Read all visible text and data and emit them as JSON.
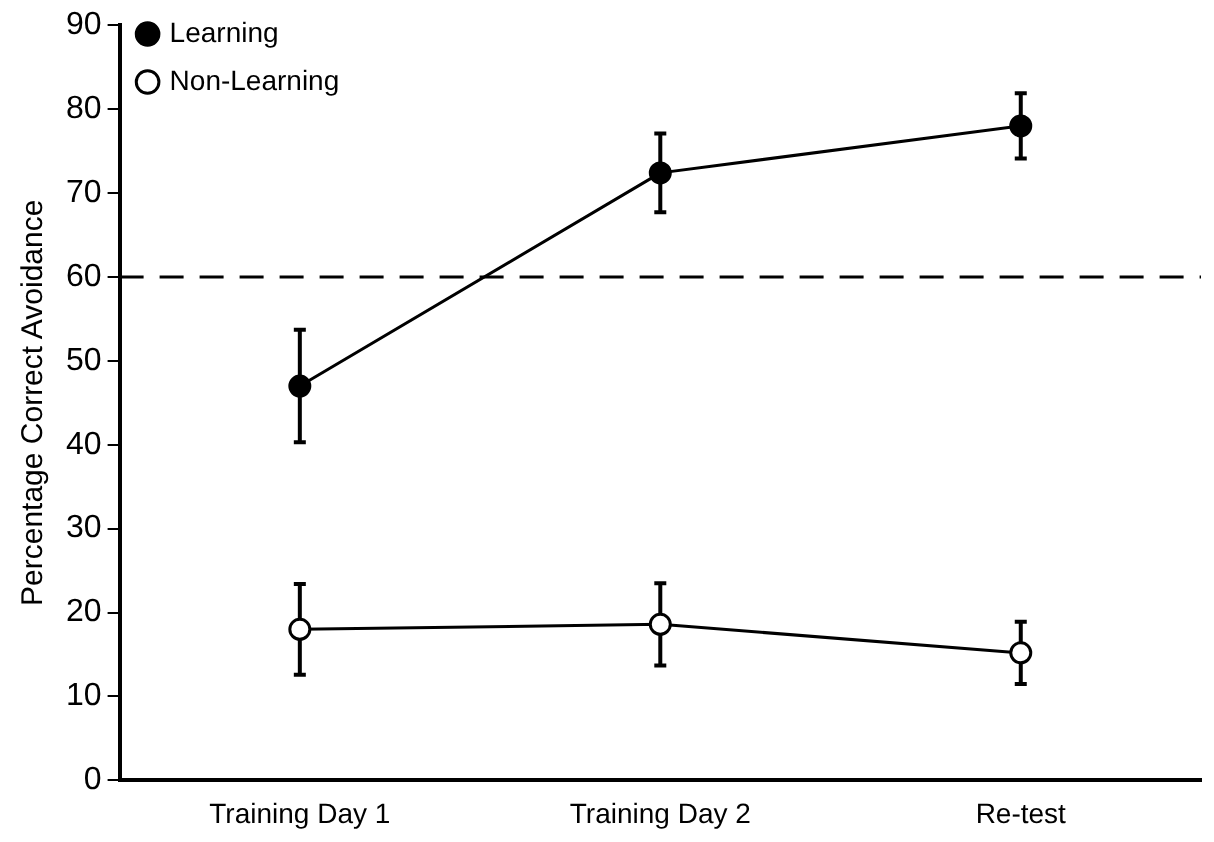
{
  "chart_data": {
    "type": "line",
    "ylabel": "Percentage Correct Avoidance",
    "categories": [
      "Training Day 1",
      "Training Day 2",
      "Re-test"
    ],
    "series": [
      {
        "name": "Learning",
        "color": "#000000",
        "values": [
          47,
          72.4,
          78
        ],
        "errors": [
          6.7,
          4.7,
          3.9
        ],
        "marker": "circle"
      },
      {
        "name": "Non-Learning",
        "color": "#000000",
        "values": [
          18,
          18.6,
          15.2
        ],
        "errors": [
          5.4,
          4.9,
          3.7
        ],
        "marker": "circle"
      }
    ],
    "ylim": [
      0,
      90
    ],
    "yticks": [
      0,
      10,
      20,
      30,
      40,
      50,
      60,
      70,
      80,
      90
    ],
    "grid": false,
    "legend": "top left",
    "ref_lines": [
      {
        "axis": "y",
        "value": 60,
        "line_style": "dashed",
        "color": "#000000"
      }
    ]
  }
}
